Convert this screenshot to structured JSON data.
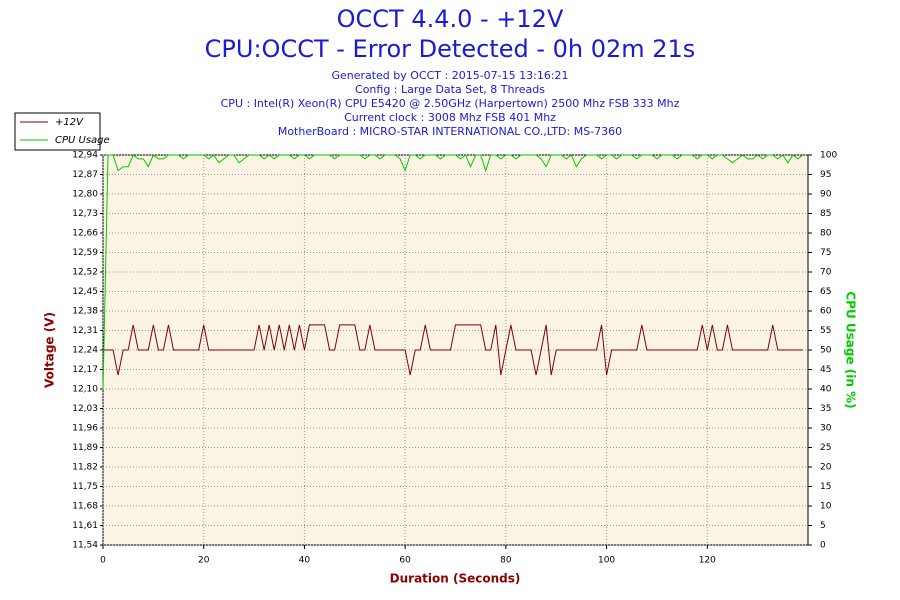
{
  "chart_data": {
    "type": "line",
    "title": "OCCT 4.4.0 - +12V",
    "subtitle": "CPU:OCCT - Error Detected - 0h 02m 21s",
    "annotations": [
      "Generated by OCCT : 2015-07-15 13:16:21",
      "Config : Large Data Set, 8 Threads",
      "CPU : Intel(R) Xeon(R) CPU E5420 @ 2.50GHz (Harpertown) 2500 Mhz FSB 333 Mhz",
      "Current clock : 3008 Mhz FSB 401 Mhz",
      "MotherBoard : MICRO-STAR INTERNATIONAL CO.,LTD: MS-7360"
    ],
    "x_label": "Duration (Seconds)",
    "y_label": "Voltage (V)",
    "y2_label": "CPU Usage (in %)",
    "x": [
      0,
      1,
      2,
      3,
      4,
      5,
      6,
      7,
      8,
      9,
      10,
      11,
      12,
      13,
      14,
      15,
      16,
      17,
      18,
      19,
      20,
      21,
      22,
      23,
      24,
      25,
      26,
      27,
      28,
      29,
      30,
      31,
      32,
      33,
      34,
      35,
      36,
      37,
      38,
      39,
      40,
      41,
      42,
      43,
      44,
      45,
      46,
      47,
      48,
      49,
      50,
      51,
      52,
      53,
      54,
      55,
      56,
      57,
      58,
      59,
      60,
      61,
      62,
      63,
      64,
      65,
      66,
      67,
      68,
      69,
      70,
      71,
      72,
      73,
      74,
      75,
      76,
      77,
      78,
      79,
      80,
      81,
      82,
      83,
      84,
      85,
      86,
      87,
      88,
      89,
      90,
      91,
      92,
      93,
      94,
      95,
      96,
      97,
      98,
      99,
      100,
      101,
      102,
      103,
      104,
      105,
      106,
      107,
      108,
      109,
      110,
      111,
      112,
      113,
      114,
      115,
      116,
      117,
      118,
      119,
      120,
      121,
      122,
      123,
      124,
      125,
      126,
      127,
      128,
      129,
      130,
      131,
      132,
      133,
      134,
      135,
      136,
      137,
      138,
      139
    ],
    "series": [
      {
        "name": "+12V",
        "color": "#800000",
        "axis": "y",
        "values": [
          12.24,
          12.24,
          12.24,
          12.15,
          12.24,
          12.24,
          12.33,
          12.24,
          12.24,
          12.24,
          12.33,
          12.24,
          12.24,
          12.33,
          12.24,
          12.24,
          12.24,
          12.24,
          12.24,
          12.24,
          12.33,
          12.24,
          12.24,
          12.24,
          12.24,
          12.24,
          12.24,
          12.24,
          12.24,
          12.24,
          12.24,
          12.33,
          12.24,
          12.33,
          12.24,
          12.33,
          12.24,
          12.33,
          12.24,
          12.33,
          12.24,
          12.33,
          12.33,
          12.33,
          12.33,
          12.24,
          12.24,
          12.33,
          12.33,
          12.33,
          12.33,
          12.24,
          12.24,
          12.33,
          12.24,
          12.24,
          12.24,
          12.24,
          12.24,
          12.24,
          12.24,
          12.15,
          12.24,
          12.24,
          12.33,
          12.24,
          12.24,
          12.24,
          12.24,
          12.24,
          12.33,
          12.33,
          12.33,
          12.33,
          12.33,
          12.33,
          12.24,
          12.24,
          12.33,
          12.15,
          12.24,
          12.33,
          12.24,
          12.24,
          12.24,
          12.24,
          12.15,
          12.24,
          12.33,
          12.15,
          12.24,
          12.24,
          12.24,
          12.24,
          12.24,
          12.24,
          12.24,
          12.24,
          12.24,
          12.33,
          12.15,
          12.24,
          12.24,
          12.24,
          12.24,
          12.24,
          12.24,
          12.33,
          12.24,
          12.24,
          12.24,
          12.24,
          12.24,
          12.24,
          12.24,
          12.24,
          12.24,
          12.24,
          12.24,
          12.33,
          12.24,
          12.33,
          12.24,
          12.24,
          12.33,
          12.24,
          12.24,
          12.24,
          12.24,
          12.24,
          12.24,
          12.24,
          12.24,
          12.33,
          12.24,
          12.24,
          12.24,
          12.24,
          12.24,
          12.24
        ]
      },
      {
        "name": "CPU Usage",
        "color": "#00cc00",
        "axis": "y2",
        "values": [
          40,
          100,
          100,
          96,
          97,
          97,
          100,
          99,
          99,
          97,
          100,
          99,
          99,
          100,
          100,
          100,
          99,
          100,
          100,
          100,
          100,
          99,
          100,
          98,
          99,
          100,
          100,
          98,
          99,
          100,
          100,
          100,
          99,
          100,
          99,
          100,
          100,
          100,
          99,
          100,
          100,
          99,
          100,
          100,
          100,
          100,
          99,
          100,
          100,
          100,
          100,
          100,
          99,
          100,
          100,
          99,
          100,
          100,
          100,
          99,
          96,
          100,
          100,
          99,
          100,
          100,
          100,
          99,
          100,
          100,
          100,
          99,
          100,
          97,
          100,
          100,
          96,
          100,
          100,
          99,
          100,
          100,
          99,
          100,
          100,
          100,
          100,
          99,
          97,
          100,
          100,
          100,
          99,
          100,
          97,
          99,
          100,
          100,
          100,
          99,
          100,
          100,
          99,
          100,
          100,
          100,
          99,
          100,
          100,
          100,
          99,
          100,
          100,
          100,
          99,
          100,
          100,
          100,
          99,
          100,
          100,
          99,
          100,
          100,
          99,
          98,
          99,
          100,
          99,
          99,
          100,
          99,
          100,
          100,
          99,
          100,
          98,
          100,
          99,
          100
        ]
      }
    ],
    "xlim": [
      0,
      140
    ],
    "xticks": [
      0,
      20,
      40,
      60,
      80,
      100,
      120
    ],
    "ylim": [
      11.54,
      12.94
    ],
    "yticks": [
      {
        "value": 11.54,
        "label": "11,54"
      },
      {
        "value": 11.61,
        "label": "11,61"
      },
      {
        "value": 11.68,
        "label": "11,68"
      },
      {
        "value": 11.75,
        "label": "11,75"
      },
      {
        "value": 11.82,
        "label": "11,82"
      },
      {
        "value": 11.89,
        "label": "11,89"
      },
      {
        "value": 11.96,
        "label": "11,96"
      },
      {
        "value": 12.03,
        "label": "12,03"
      },
      {
        "value": 12.1,
        "label": "12,10"
      },
      {
        "value": 12.17,
        "label": "12,17"
      },
      {
        "value": 12.24,
        "label": "12,24"
      },
      {
        "value": 12.31,
        "label": "12,31"
      },
      {
        "value": 12.38,
        "label": "12,38"
      },
      {
        "value": 12.45,
        "label": "12,45"
      },
      {
        "value": 12.52,
        "label": "12,52"
      },
      {
        "value": 12.59,
        "label": "12,59"
      },
      {
        "value": 12.66,
        "label": "12,66"
      },
      {
        "value": 12.73,
        "label": "12,73"
      },
      {
        "value": 12.8,
        "label": "12,80"
      },
      {
        "value": 12.87,
        "label": "12,87"
      },
      {
        "value": 12.94,
        "label": "12,94"
      }
    ],
    "y2lim": [
      0,
      100
    ],
    "y2ticks": [
      0,
      5,
      10,
      15,
      20,
      25,
      30,
      35,
      40,
      45,
      50,
      55,
      60,
      65,
      70,
      75,
      80,
      85,
      90,
      95,
      100
    ],
    "grid": true,
    "legend": "upper left",
    "background": "#fbf4e4"
  }
}
